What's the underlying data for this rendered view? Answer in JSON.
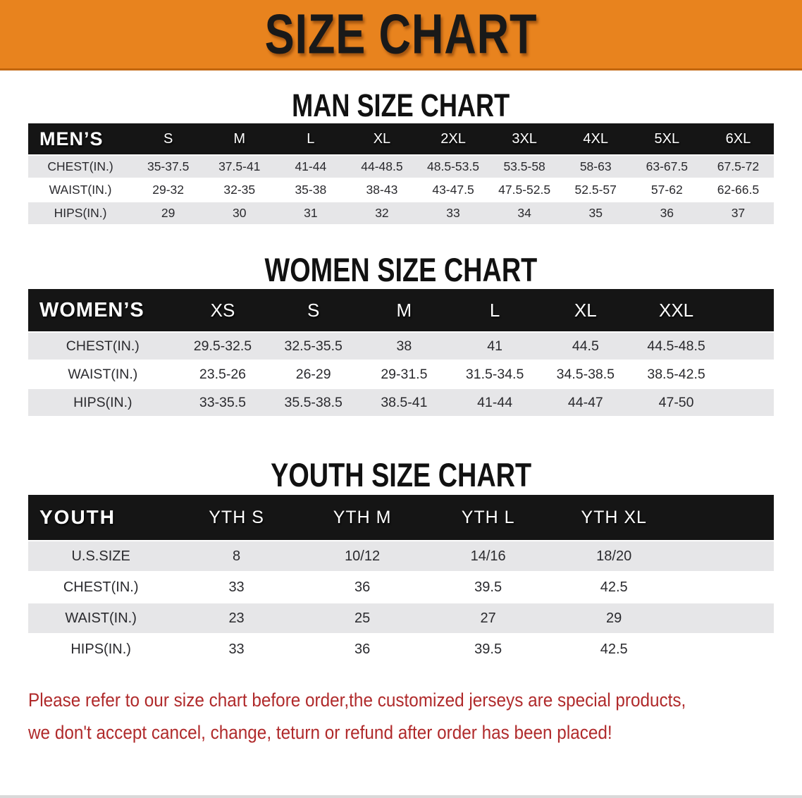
{
  "banner": {
    "title": "SIZE CHART"
  },
  "colors": {
    "accent_orange": "#E8831E",
    "accent_orange_edge": "#C2660E",
    "table_header_black": "#151515",
    "row_stripe_gray": "#E6E6E8",
    "disclaimer_red": "#B02A2B"
  },
  "sections": [
    {
      "heading": "MAN SIZE CHART",
      "table": {
        "label": "MEN’S",
        "sizes": [
          "S",
          "M",
          "L",
          "XL",
          "2XL",
          "3XL",
          "4XL",
          "5XL",
          "6XL"
        ],
        "rows": [
          {
            "label": "CHEST(IN.)",
            "values": [
              "35-37.5",
              "37.5-41",
              "41-44",
              "44-48.5",
              "48.5-53.5",
              "53.5-58",
              "58-63",
              "63-67.5",
              "67.5-72"
            ]
          },
          {
            "label": "WAIST(IN.)",
            "values": [
              "29-32",
              "32-35",
              "35-38",
              "38-43",
              "43-47.5",
              "47.5-52.5",
              "52.5-57",
              "57-62",
              "62-66.5"
            ]
          },
          {
            "label": "HIPS(IN.)",
            "values": [
              "29",
              "30",
              "31",
              "32",
              "33",
              "34",
              "35",
              "36",
              "37"
            ]
          }
        ]
      }
    },
    {
      "heading": "WOMEN SIZE CHART",
      "table": {
        "label": "WOMEN’S",
        "sizes": [
          "XS",
          "S",
          "M",
          "L",
          "XL",
          "XXL"
        ],
        "rows": [
          {
            "label": "CHEST(IN.)",
            "values": [
              "29.5-32.5",
              "32.5-35.5",
              "38",
              "41",
              "44.5",
              "44.5-48.5"
            ]
          },
          {
            "label": "WAIST(IN.)",
            "values": [
              "23.5-26",
              "26-29",
              "29-31.5",
              "31.5-34.5",
              "34.5-38.5",
              "38.5-42.5"
            ]
          },
          {
            "label": "HIPS(IN.)",
            "values": [
              "33-35.5",
              "35.5-38.5",
              "38.5-41",
              "41-44",
              "44-47",
              "47-50"
            ]
          }
        ]
      }
    },
    {
      "heading": "YOUTH SIZE CHART",
      "table": {
        "label": "YOUTH",
        "sizes": [
          "YTH S",
          "YTH M",
          "YTH L",
          "YTH XL"
        ],
        "rows": [
          {
            "label": "U.S.SIZE",
            "values": [
              "8",
              "10/12",
              "14/16",
              "18/20"
            ]
          },
          {
            "label": "CHEST(IN.)",
            "values": [
              "33",
              "36",
              "39.5",
              "42.5"
            ]
          },
          {
            "label": "WAIST(IN.)",
            "values": [
              "23",
              "25",
              "27",
              "29"
            ]
          },
          {
            "label": "HIPS(IN.)",
            "values": [
              "33",
              "36",
              "39.5",
              "42.5"
            ]
          }
        ]
      }
    }
  ],
  "disclaimer": {
    "line1": "Please refer to our size chart before order,the customized jerseys are special products,",
    "line2": "we don't accept cancel, change, teturn or refund after order has been placed!"
  }
}
